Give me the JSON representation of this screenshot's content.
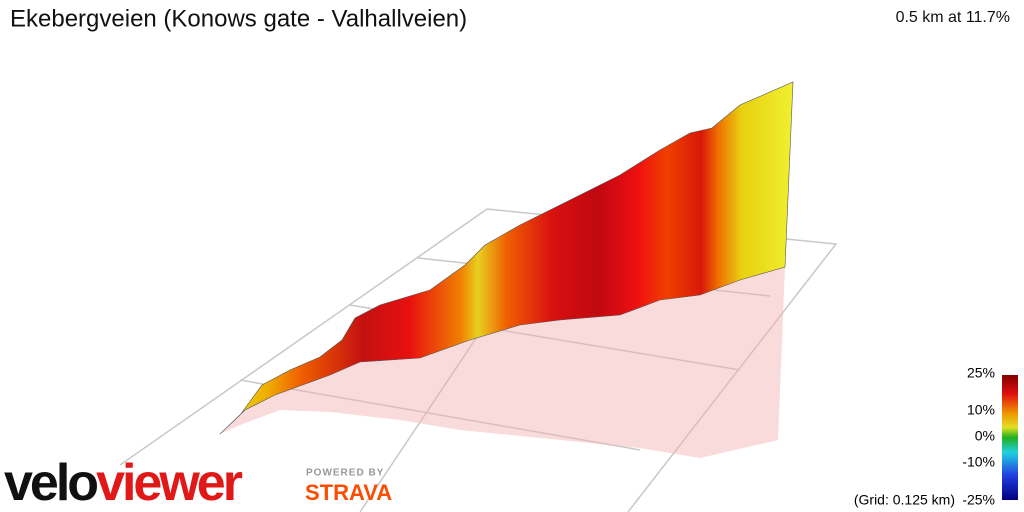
{
  "header": {
    "title": "Ekebergveien (Konows gate - Valhallveien)",
    "summary": "0.5 km at 11.7%"
  },
  "legend": {
    "labels": [
      "25%",
      "10%",
      "0%",
      "-10%",
      "-25%"
    ],
    "grid_note": "(Grid: 0.125 km)"
  },
  "branding": {
    "logo_part1": "velo",
    "logo_part2": "viewer",
    "powered_by": "POWERED BY",
    "strava": "STRAVA"
  }
}
